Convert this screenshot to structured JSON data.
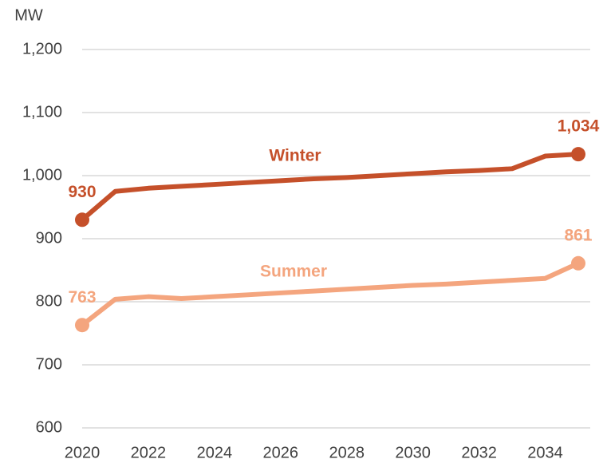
{
  "chart_data": {
    "type": "line",
    "y_label": "MW",
    "x": [
      2020,
      2021,
      2022,
      2023,
      2024,
      2025,
      2026,
      2027,
      2028,
      2029,
      2030,
      2031,
      2032,
      2033,
      2034,
      2035
    ],
    "series": [
      {
        "name": "Winter",
        "color": "#c5502a",
        "values": [
          930,
          975,
          980,
          983,
          986,
          989,
          992,
          995,
          997,
          1000,
          1003,
          1006,
          1008,
          1011,
          1031,
          1034
        ],
        "value_labels": [
          "930",
          null,
          null,
          null,
          null,
          null,
          null,
          null,
          null,
          null,
          null,
          null,
          null,
          null,
          null,
          "1,034"
        ]
      },
      {
        "name": "Summer",
        "color": "#f4a57e",
        "values": [
          763,
          804,
          808,
          805,
          808,
          811,
          814,
          817,
          820,
          823,
          826,
          828,
          831,
          834,
          837,
          861
        ],
        "value_labels": [
          "763",
          null,
          null,
          null,
          null,
          null,
          null,
          null,
          null,
          null,
          null,
          null,
          null,
          null,
          null,
          "861"
        ]
      }
    ],
    "xlim": [
      2020,
      2035
    ],
    "xticks": [
      2020,
      2022,
      2024,
      2026,
      2028,
      2030,
      2032,
      2034
    ],
    "ylim": [
      600,
      1200
    ],
    "yticks": [
      600,
      700,
      800,
      900,
      {
        "value": 1000,
        "label": "1,000"
      },
      {
        "value": 1100,
        "label": "1,100"
      },
      {
        "value": 1200,
        "label": "1,200"
      }
    ],
    "grid": true
  }
}
